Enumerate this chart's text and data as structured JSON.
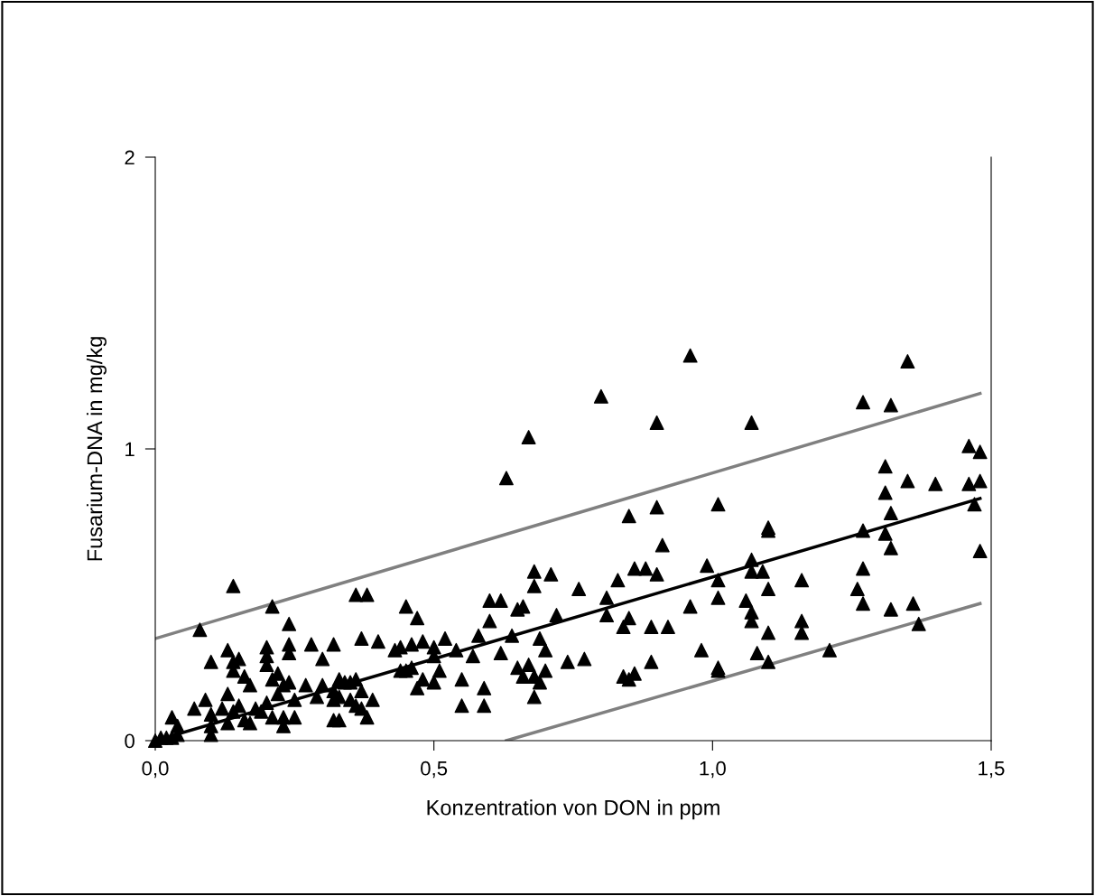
{
  "chart_data": {
    "type": "scatter",
    "xlabel": "Konzentration von DON in ppm",
    "ylabel": "Fusarium-DNA in mg/kg",
    "xlim": [
      0,
      1.5
    ],
    "ylim": [
      0,
      2
    ],
    "xticks": [
      {
        "value": 0,
        "label": "0,0"
      },
      {
        "value": 0.5,
        "label": "0,5"
      },
      {
        "value": 1,
        "label": "1,0"
      },
      {
        "value": 1.5,
        "label": "1,5"
      }
    ],
    "yticks": [
      0,
      1,
      2
    ],
    "grid": false,
    "legend": false,
    "series": [
      {
        "type": "scatter",
        "color": "#000000",
        "marker": "triangle",
        "x": [
          0.14,
          0.08,
          0.21,
          0.36,
          0.38,
          0.63,
          0.67,
          0.8,
          0.9,
          0.96,
          1.07,
          1.27,
          1.32,
          1.35,
          1.46,
          1.48,
          1.31,
          1.35,
          1.4,
          1.46,
          1.48,
          1.31,
          1.47,
          1.48,
          1.01,
          0.85,
          0.9,
          0.91,
          1.32,
          1.31,
          1.27,
          1.32,
          1.1,
          1.1,
          0.86,
          0.88,
          0.9,
          0.99,
          1.01,
          1.07,
          1.07,
          1.09,
          1.16,
          1.27,
          1.26,
          1.27,
          1.36,
          1.37,
          1.32,
          1.1,
          1.06,
          1.01,
          0.96,
          1.07,
          1.07,
          1.1,
          1.16,
          1.16,
          1.08,
          1.1,
          1.01,
          1.01,
          0.98,
          1.21,
          0.92,
          0.89,
          0.85,
          0.84,
          0.83,
          0.81,
          0.81,
          0.84,
          0.85,
          0.86,
          0.89,
          0.77,
          0.74,
          0.72,
          0.71,
          0.68,
          0.68,
          0.66,
          0.65,
          0.6,
          0.62,
          0.6,
          0.64,
          0.58,
          0.62,
          0.65,
          0.66,
          0.68,
          0.7,
          0.69,
          0.68,
          0.7,
          0.69,
          0.67,
          0.76,
          0.59,
          0.59,
          0.55,
          0.57,
          0.54,
          0.52,
          0.5,
          0.5,
          0.51,
          0.48,
          0.46,
          0.45,
          0.44,
          0.45,
          0.46,
          0.47,
          0.48,
          0.47,
          0.5,
          0.55,
          0.0,
          0.01,
          0.02,
          0.03,
          0.03,
          0.04,
          0.04,
          0.07,
          0.09,
          0.1,
          0.1,
          0.1,
          0.1,
          0.12,
          0.13,
          0.13,
          0.13,
          0.14,
          0.14,
          0.14,
          0.15,
          0.15,
          0.16,
          0.16,
          0.17,
          0.17,
          0.18,
          0.19,
          0.2,
          0.2,
          0.2,
          0.2,
          0.21,
          0.21,
          0.22,
          0.22,
          0.23,
          0.23,
          0.23,
          0.24,
          0.24,
          0.24,
          0.24,
          0.25,
          0.25,
          0.27,
          0.28,
          0.29,
          0.3,
          0.3,
          0.32,
          0.32,
          0.32,
          0.32,
          0.33,
          0.33,
          0.33,
          0.34,
          0.35,
          0.35,
          0.36,
          0.36,
          0.37,
          0.37,
          0.37,
          0.38,
          0.39,
          0.4,
          0.43,
          0.44
        ],
        "values": [
          0.53,
          0.38,
          0.46,
          0.5,
          0.5,
          0.9,
          1.04,
          1.18,
          1.09,
          1.32,
          1.09,
          1.16,
          1.15,
          1.3,
          1.01,
          0.99,
          0.94,
          0.89,
          0.88,
          0.88,
          0.89,
          0.85,
          0.81,
          0.65,
          0.81,
          0.77,
          0.8,
          0.67,
          0.78,
          0.71,
          0.72,
          0.66,
          0.73,
          0.72,
          0.59,
          0.59,
          0.57,
          0.6,
          0.55,
          0.62,
          0.58,
          0.58,
          0.55,
          0.59,
          0.52,
          0.47,
          0.47,
          0.4,
          0.45,
          0.52,
          0.48,
          0.49,
          0.46,
          0.44,
          0.41,
          0.37,
          0.41,
          0.37,
          0.3,
          0.27,
          0.25,
          0.24,
          0.31,
          0.31,
          0.39,
          0.39,
          0.42,
          0.39,
          0.55,
          0.49,
          0.43,
          0.22,
          0.21,
          0.23,
          0.27,
          0.28,
          0.27,
          0.43,
          0.57,
          0.58,
          0.53,
          0.46,
          0.45,
          0.48,
          0.48,
          0.41,
          0.36,
          0.36,
          0.3,
          0.25,
          0.22,
          0.22,
          0.24,
          0.2,
          0.15,
          0.31,
          0.35,
          0.26,
          0.52,
          0.18,
          0.12,
          0.12,
          0.29,
          0.31,
          0.35,
          0.29,
          0.32,
          0.24,
          0.21,
          0.25,
          0.24,
          0.32,
          0.46,
          0.33,
          0.42,
          0.34,
          0.18,
          0.2,
          0.21,
          0.0,
          0.01,
          0.01,
          0.01,
          0.08,
          0.05,
          0.02,
          0.11,
          0.14,
          0.05,
          0.02,
          0.09,
          0.27,
          0.11,
          0.16,
          0.06,
          0.31,
          0.24,
          0.27,
          0.1,
          0.28,
          0.12,
          0.07,
          0.22,
          0.19,
          0.06,
          0.11,
          0.1,
          0.32,
          0.29,
          0.26,
          0.13,
          0.21,
          0.08,
          0.23,
          0.16,
          0.19,
          0.08,
          0.05,
          0.33,
          0.3,
          0.4,
          0.2,
          0.14,
          0.08,
          0.19,
          0.33,
          0.15,
          0.19,
          0.28,
          0.33,
          0.17,
          0.14,
          0.07,
          0.21,
          0.15,
          0.07,
          0.2,
          0.2,
          0.14,
          0.21,
          0.12,
          0.17,
          0.11,
          0.35,
          0.08,
          0.14,
          0.34,
          0.31,
          0.24
        ]
      },
      {
        "type": "line",
        "color": "#000000",
        "x": [
          0,
          1.48
        ],
        "values": [
          0,
          0.83
        ]
      },
      {
        "type": "line",
        "color": "#808080",
        "x": [
          0,
          1.48
        ],
        "values": [
          0.35,
          1.19
        ]
      },
      {
        "type": "line",
        "color": "#808080",
        "x": [
          0.63,
          1.48
        ],
        "values": [
          0,
          0.47
        ]
      }
    ]
  }
}
